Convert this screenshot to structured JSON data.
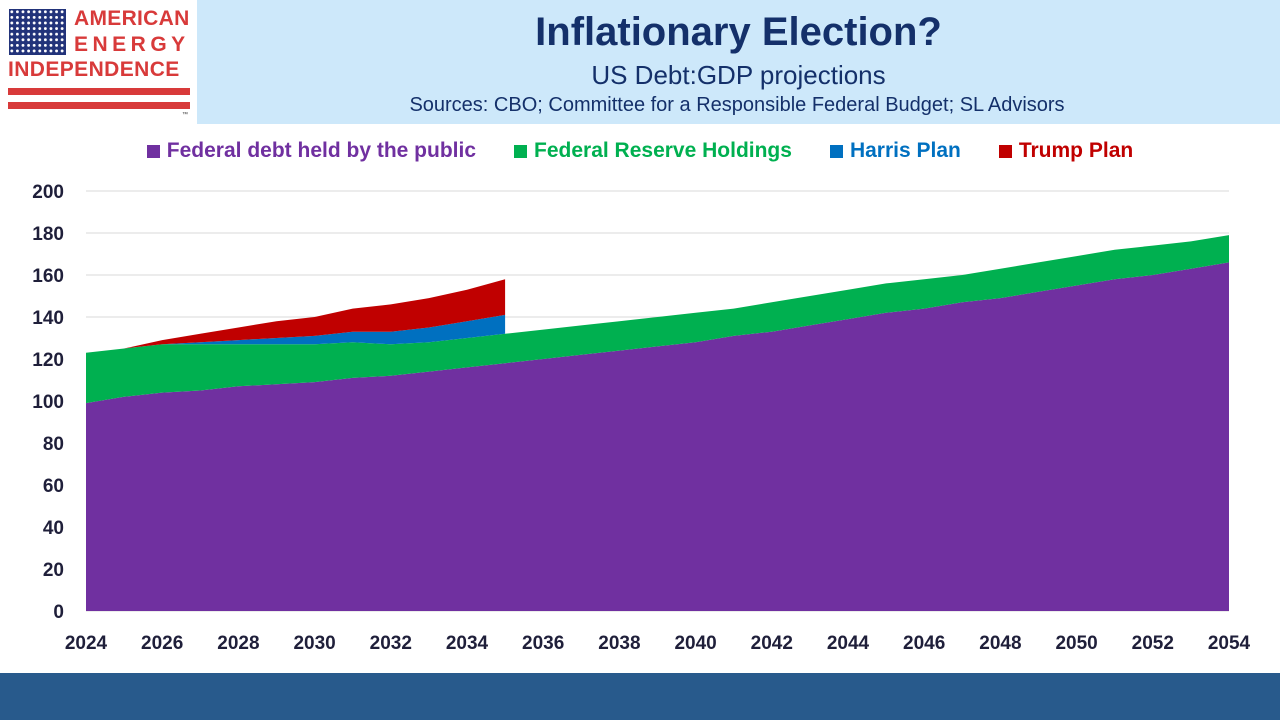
{
  "header": {
    "logo": {
      "line1": "AMERICAN",
      "line2": "ENERGY",
      "line3": "INDEPENDENCE",
      "tm": "™"
    },
    "title": "Inflationary Election?",
    "subtitle": "US Debt:GDP projections",
    "sources": "Sources: CBO; Committee for a Responsible Federal Budget; SL Advisors"
  },
  "colors": {
    "header_bg": "#cde8fa",
    "title": "#14306a",
    "federal_debt": "#7030a0",
    "fed_reserve": "#00b050",
    "harris": "#0070c0",
    "trump": "#c00000",
    "footer": "#285a8c",
    "logo_red": "#d83a3a",
    "logo_blue": "#22337a"
  },
  "chart_data": {
    "type": "area",
    "stacked": true,
    "xlim": [
      2024,
      2054
    ],
    "ylim": [
      0,
      200
    ],
    "xticks": [
      "2024",
      "2026",
      "2028",
      "2030",
      "2032",
      "2034",
      "2036",
      "2038",
      "2040",
      "2042",
      "2044",
      "2046",
      "2048",
      "2050",
      "2052",
      "2054"
    ],
    "yticks": [
      "0",
      "20",
      "40",
      "60",
      "80",
      "100",
      "120",
      "140",
      "160",
      "180",
      "200"
    ],
    "grid": "horizontal",
    "legend_position": "top",
    "series": [
      {
        "name": "Federal debt held by the public",
        "color": "#7030a0",
        "x": [
          2024,
          2025,
          2026,
          2027,
          2028,
          2029,
          2030,
          2031,
          2032,
          2033,
          2034,
          2035,
          2036,
          2037,
          2038,
          2039,
          2040,
          2041,
          2042,
          2043,
          2044,
          2045,
          2046,
          2047,
          2048,
          2049,
          2050,
          2051,
          2052,
          2053,
          2054
        ],
        "values": [
          99,
          102,
          104,
          105,
          107,
          108,
          109,
          111,
          112,
          114,
          116,
          118,
          120,
          122,
          124,
          126,
          128,
          131,
          133,
          136,
          139,
          142,
          144,
          147,
          149,
          152,
          155,
          158,
          160,
          163,
          166
        ]
      },
      {
        "name": "Federal Reserve Holdings",
        "color": "#00b050",
        "x": [
          2024,
          2025,
          2026,
          2027,
          2028,
          2029,
          2030,
          2031,
          2032,
          2033,
          2034,
          2035,
          2036,
          2037,
          2038,
          2039,
          2040,
          2041,
          2042,
          2043,
          2044,
          2045,
          2046,
          2047,
          2048,
          2049,
          2050,
          2051,
          2052,
          2053,
          2054
        ],
        "values": [
          24,
          23,
          23,
          22,
          20,
          19,
          18,
          17,
          15,
          14,
          14,
          14,
          14,
          14,
          14,
          14,
          14,
          13,
          14,
          14,
          14,
          14,
          14,
          13,
          14,
          14,
          14,
          14,
          14,
          13,
          13
        ]
      },
      {
        "name": "Harris Plan",
        "color": "#0070c0",
        "x": [
          2024,
          2025,
          2026,
          2027,
          2028,
          2029,
          2030,
          2031,
          2032,
          2033,
          2034,
          2035
        ],
        "values": [
          0,
          0,
          0,
          1,
          2,
          3,
          4,
          5,
          6,
          7,
          8,
          9
        ]
      },
      {
        "name": "Trump Plan",
        "color": "#c00000",
        "x": [
          2024,
          2025,
          2026,
          2027,
          2028,
          2029,
          2030,
          2031,
          2032,
          2033,
          2034,
          2035
        ],
        "values": [
          0,
          0,
          2,
          4,
          6,
          8,
          9,
          11,
          13,
          14,
          15,
          17
        ]
      }
    ]
  }
}
